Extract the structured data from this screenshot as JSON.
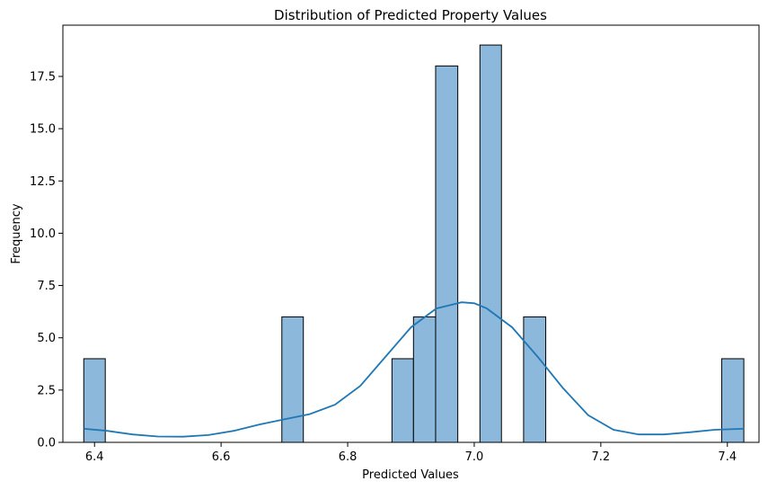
{
  "chart_data": {
    "type": "bar",
    "subtype": "histogram-with-kde",
    "title": "Distribution of Predicted Property Values",
    "xlabel": "Predicted Values",
    "ylabel": "Frequency",
    "xlim": [
      6.35,
      7.45
    ],
    "ylim": [
      0,
      19.95
    ],
    "xticks": [
      6.4,
      6.6,
      6.8,
      7.0,
      7.2,
      7.4
    ],
    "xtick_labels": [
      "6.4",
      "6.6",
      "6.8",
      "7.0",
      "7.2",
      "7.4"
    ],
    "yticks": [
      0,
      2.5,
      5.0,
      7.5,
      10.0,
      12.5,
      15.0,
      17.5
    ],
    "ytick_labels": [
      "0.0",
      "2.5",
      "5.0",
      "7.5",
      "10.0",
      "12.5",
      "15.0",
      "17.5"
    ],
    "bars": [
      {
        "x0": 6.383,
        "x1": 6.417,
        "count": 4
      },
      {
        "x0": 6.696,
        "x1": 6.73,
        "count": 6
      },
      {
        "x0": 6.87,
        "x1": 6.904,
        "count": 4
      },
      {
        "x0": 6.904,
        "x1": 6.939,
        "count": 6
      },
      {
        "x0": 6.939,
        "x1": 6.974,
        "count": 18
      },
      {
        "x0": 7.009,
        "x1": 7.043,
        "count": 19
      },
      {
        "x0": 7.078,
        "x1": 7.113,
        "count": 6
      },
      {
        "x0": 7.391,
        "x1": 7.426,
        "count": 4
      }
    ],
    "kde": {
      "x": [
        6.383,
        6.42,
        6.46,
        6.5,
        6.54,
        6.58,
        6.62,
        6.66,
        6.7,
        6.74,
        6.78,
        6.82,
        6.86,
        6.9,
        6.94,
        6.98,
        7.0,
        7.02,
        7.06,
        7.1,
        7.14,
        7.18,
        7.22,
        7.26,
        7.3,
        7.34,
        7.38,
        7.426
      ],
      "y": [
        0.65,
        0.55,
        0.38,
        0.28,
        0.27,
        0.35,
        0.55,
        0.85,
        1.1,
        1.35,
        1.8,
        2.7,
        4.1,
        5.5,
        6.4,
        6.7,
        6.65,
        6.4,
        5.5,
        4.1,
        2.6,
        1.3,
        0.6,
        0.38,
        0.38,
        0.48,
        0.6,
        0.65
      ]
    },
    "colors": {
      "bar_fill": "#8cb9db",
      "bar_edge": "#000000",
      "kde_line": "#1f77b4"
    },
    "grid": false,
    "legend": "none"
  }
}
